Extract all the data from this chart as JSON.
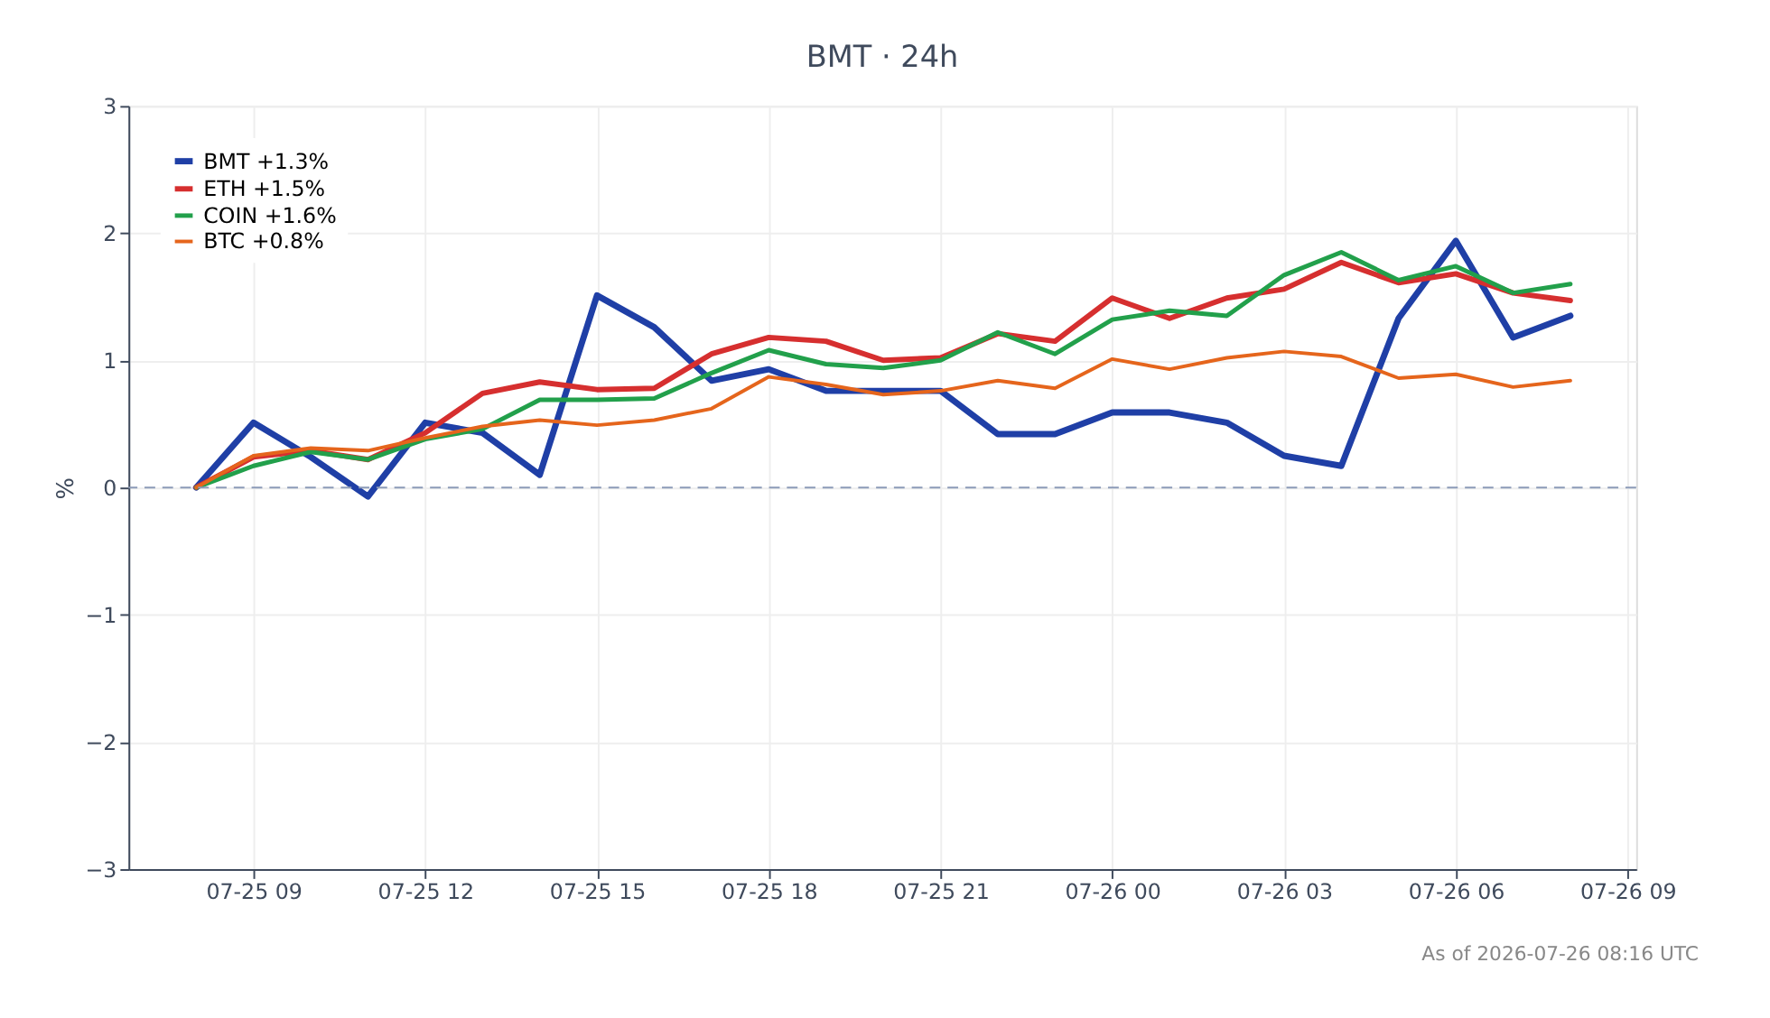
{
  "chart_data": {
    "type": "line",
    "title": "BMT · 24h",
    "ylabel": "%",
    "x": [
      "2026-07-25T08:00",
      "2026-07-25T09:00",
      "2026-07-25T10:00",
      "2026-07-25T11:00",
      "2026-07-25T12:00",
      "2026-07-25T13:00",
      "2026-07-25T14:00",
      "2026-07-25T15:00",
      "2026-07-25T16:00",
      "2026-07-25T17:00",
      "2026-07-25T18:00",
      "2026-07-25T19:00",
      "2026-07-25T20:00",
      "2026-07-25T21:00",
      "2026-07-25T22:00",
      "2026-07-25T23:00",
      "2026-07-26T00:00",
      "2026-07-26T01:00",
      "2026-07-26T02:00",
      "2026-07-26T03:00",
      "2026-07-26T04:00",
      "2026-07-26T05:00",
      "2026-07-26T06:00",
      "2026-07-26T07:00",
      "2026-07-26T08:00"
    ],
    "series": [
      {
        "name": "BMT +1.3%",
        "color": "#1f3fa6",
        "values": [
          0,
          0.51,
          0.24,
          -0.07,
          0.51,
          0.43,
          0.1,
          1.51,
          1.26,
          0.84,
          0.93,
          0.76,
          0.76,
          0.76,
          0.42,
          0.42,
          0.59,
          0.59,
          0.51,
          0.25,
          0.17,
          1.33,
          1.94,
          1.18,
          1.35
        ]
      },
      {
        "name": "ETH +1.5%",
        "color": "#d62f2f",
        "values": [
          0,
          0.24,
          0.29,
          0.22,
          0.43,
          0.74,
          0.83,
          0.77,
          0.78,
          1.05,
          1.18,
          1.15,
          1.0,
          1.02,
          1.21,
          1.15,
          1.49,
          1.33,
          1.49,
          1.56,
          1.77,
          1.61,
          1.68,
          1.53,
          1.47
        ]
      },
      {
        "name": "COIN +1.6%",
        "color": "#22a04b",
        "values": [
          0,
          0.17,
          0.28,
          0.22,
          0.38,
          0.46,
          0.69,
          0.69,
          0.7,
          0.9,
          1.08,
          0.97,
          0.94,
          1.0,
          1.22,
          1.05,
          1.32,
          1.39,
          1.35,
          1.67,
          1.85,
          1.63,
          1.74,
          1.53,
          1.6
        ]
      },
      {
        "name": "BTC +0.8%",
        "color": "#e5651c",
        "values": [
          0,
          0.25,
          0.31,
          0.29,
          0.39,
          0.48,
          0.53,
          0.49,
          0.53,
          0.62,
          0.87,
          0.81,
          0.73,
          0.76,
          0.84,
          0.78,
          1.01,
          0.93,
          1.02,
          1.07,
          1.03,
          0.86,
          0.89,
          0.79,
          0.84
        ]
      }
    ],
    "xlim": [
      "2026-07-25T06:49",
      "2026-07-26T09:09"
    ],
    "xticks": [
      {
        "value": "2026-07-25T09:00",
        "label": "07-25 09"
      },
      {
        "value": "2026-07-25T12:00",
        "label": "07-25 12"
      },
      {
        "value": "2026-07-25T15:00",
        "label": "07-25 15"
      },
      {
        "value": "2026-07-25T18:00",
        "label": "07-25 18"
      },
      {
        "value": "2026-07-25T21:00",
        "label": "07-25 21"
      },
      {
        "value": "2026-07-26T00:00",
        "label": "07-26 00"
      },
      {
        "value": "2026-07-26T03:00",
        "label": "07-26 03"
      },
      {
        "value": "2026-07-26T06:00",
        "label": "07-26 06"
      },
      {
        "value": "2026-07-26T09:00",
        "label": "07-26 09"
      }
    ],
    "ylim": [
      -3,
      3
    ],
    "yticks": [
      {
        "value": -3,
        "label": "−3"
      },
      {
        "value": -2,
        "label": "−2"
      },
      {
        "value": -1,
        "label": "−1"
      },
      0,
      1,
      2,
      3
    ],
    "ref_lines": [
      {
        "axis": "y",
        "value": 0,
        "color": "#8c9bb8",
        "line_style": "dashed"
      }
    ],
    "grid": true,
    "legend": "top left",
    "marker": "none",
    "line_style": "solid",
    "annotations": [
      "As of 2026-07-26 08:16 UTC"
    ]
  }
}
